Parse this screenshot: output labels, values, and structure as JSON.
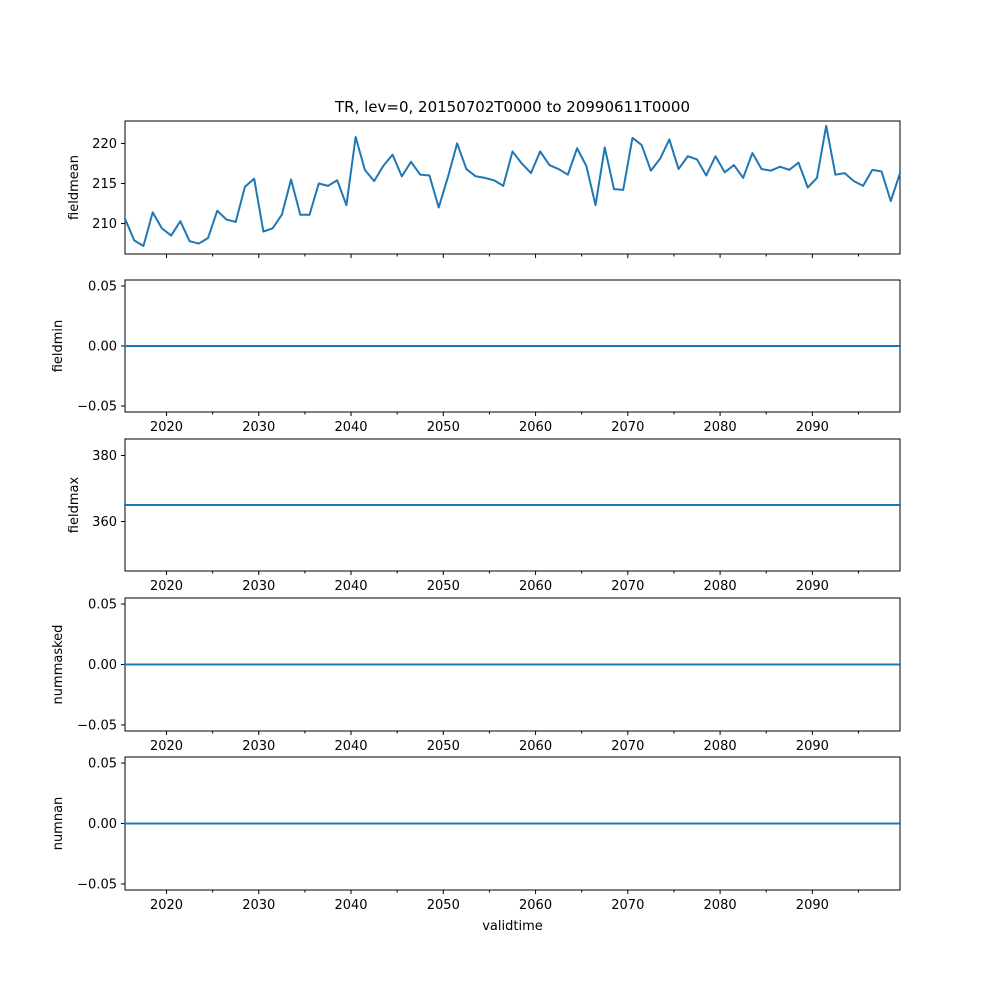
{
  "chart_data": {
    "type": "line",
    "title": "TR, lev=0, 20150702T0000 to 20990611T0000",
    "xlabel": "validtime",
    "x": [
      2015.5,
      2016.5,
      2017.5,
      2018.5,
      2019.5,
      2020.5,
      2021.5,
      2022.5,
      2023.5,
      2024.5,
      2025.5,
      2026.5,
      2027.5,
      2028.5,
      2029.5,
      2030.5,
      2031.5,
      2032.5,
      2033.5,
      2034.5,
      2035.5,
      2036.5,
      2037.5,
      2038.5,
      2039.5,
      2040.5,
      2041.5,
      2042.5,
      2043.5,
      2044.5,
      2045.5,
      2046.5,
      2047.5,
      2048.5,
      2049.5,
      2050.5,
      2051.5,
      2052.5,
      2053.5,
      2054.5,
      2055.5,
      2056.5,
      2057.5,
      2058.5,
      2059.5,
      2060.5,
      2061.5,
      2062.5,
      2063.5,
      2064.5,
      2065.5,
      2066.5,
      2067.5,
      2068.5,
      2069.5,
      2070.5,
      2071.5,
      2072.5,
      2073.5,
      2074.5,
      2075.5,
      2076.5,
      2077.5,
      2078.5,
      2079.5,
      2080.5,
      2081.5,
      2082.5,
      2083.5,
      2084.5,
      2085.5,
      2086.5,
      2087.5,
      2088.5,
      2089.5,
      2090.5,
      2091.5,
      2092.5,
      2093.5,
      2094.5,
      2095.5,
      2096.5,
      2097.5,
      2098.5,
      2099.5
    ],
    "xlim": [
      2015.5,
      2099.5
    ],
    "xticks": [
      2020,
      2030,
      2040,
      2050,
      2060,
      2070,
      2080,
      2090
    ],
    "xtick_labels": [
      "2020",
      "2030",
      "2040",
      "2050",
      "2060",
      "2070",
      "2080",
      "2090"
    ],
    "line_color": "#1f77b4",
    "panels": [
      {
        "ylabel": "fieldmean",
        "ylim": [
          206.2,
          222.8
        ],
        "yticks": [
          210,
          215,
          220
        ],
        "ytick_labels": [
          "210",
          "215",
          "220"
        ],
        "show_xtick_labels": false,
        "values": [
          210.6,
          207.9,
          207.2,
          211.4,
          209.4,
          208.5,
          210.3,
          207.8,
          207.5,
          208.2,
          211.6,
          210.5,
          210.2,
          214.6,
          215.6,
          209.0,
          209.4,
          211.1,
          215.5,
          211.1,
          211.1,
          215.0,
          214.7,
          215.4,
          212.3,
          220.8,
          216.7,
          215.3,
          217.2,
          218.6,
          215.9,
          217.7,
          216.1,
          216.0,
          212.0,
          215.8,
          220.0,
          216.8,
          215.9,
          215.7,
          215.4,
          214.7,
          219.0,
          217.5,
          216.3,
          219.0,
          217.3,
          216.8,
          216.1,
          219.4,
          217.2,
          212.3,
          219.5,
          214.3,
          214.2,
          220.7,
          219.8,
          216.6,
          218.1,
          220.5,
          216.8,
          218.4,
          218.0,
          216.0,
          218.4,
          216.4,
          217.3,
          215.7,
          218.8,
          216.8,
          216.6,
          217.1,
          216.7,
          217.6,
          214.5,
          215.7,
          222.2,
          216.1,
          216.3,
          215.3,
          214.7,
          216.7,
          216.5,
          212.8,
          216.3
        ]
      },
      {
        "ylabel": "fieldmin",
        "ylim": [
          -0.055,
          0.055
        ],
        "yticks": [
          0.05,
          0.0,
          -0.05
        ],
        "ytick_labels": [
          "0.05",
          "0.00",
          "−0.05"
        ],
        "show_xtick_labels": true,
        "constant_value": 0.0
      },
      {
        "ylabel": "fieldmax",
        "ylim": [
          345,
          385
        ],
        "yticks": [
          380,
          360
        ],
        "ytick_labels": [
          "380",
          "360"
        ],
        "show_xtick_labels": true,
        "constant_value": 365
      },
      {
        "ylabel": "nummasked",
        "ylim": [
          -0.055,
          0.055
        ],
        "yticks": [
          0.05,
          0.0,
          -0.05
        ],
        "ytick_labels": [
          "0.05",
          "0.00",
          "−0.05"
        ],
        "show_xtick_labels": true,
        "constant_value": 0.0
      },
      {
        "ylabel": "numnan",
        "ylim": [
          -0.055,
          0.055
        ],
        "yticks": [
          0.05,
          0.0,
          -0.05
        ],
        "ytick_labels": [
          "0.05",
          "0.00",
          "−0.05"
        ],
        "show_xtick_labels": true,
        "constant_value": 0.0
      }
    ]
  }
}
